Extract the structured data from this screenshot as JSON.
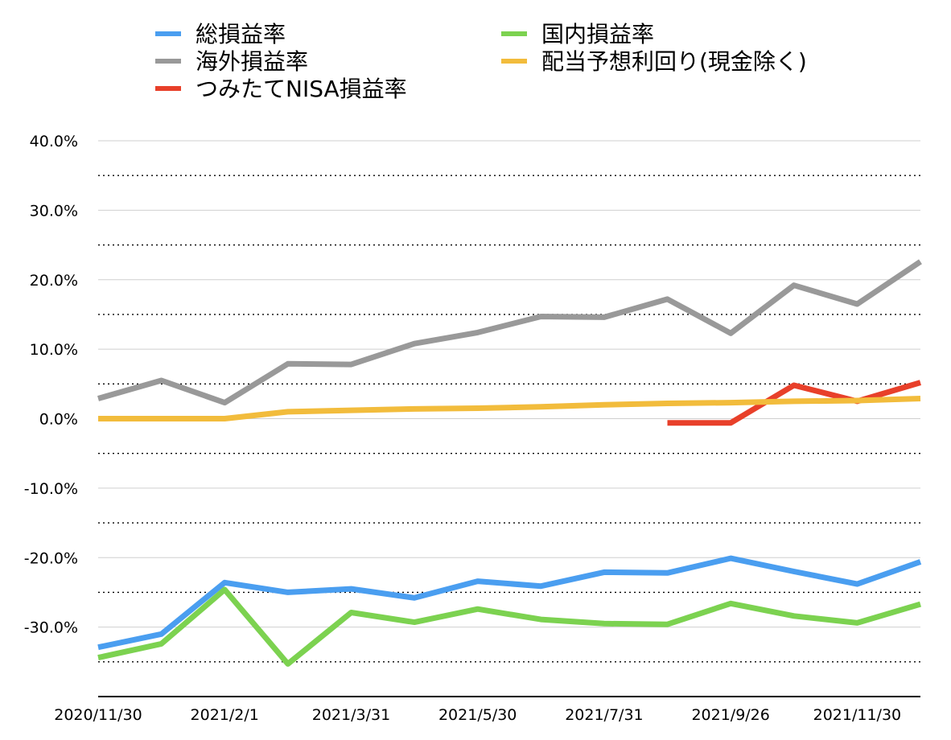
{
  "chart_data": {
    "type": "line",
    "title": "",
    "xlabel": "",
    "ylabel": "",
    "ylim": [
      -40,
      40
    ],
    "y_ticks": [
      "40.0%",
      "30.0%",
      "20.0%",
      "10.0%",
      "0.0%",
      "-10.0%",
      "-20.0%",
      "-30.0%"
    ],
    "x_tick_labels": [
      "2020/11/30",
      "2021/2/1",
      "2021/3/31",
      "2021/5/30",
      "2021/7/31",
      "2021/9/26",
      "2021/11/30"
    ],
    "x_points": 14,
    "grid": true,
    "legend_position": "top",
    "series": [
      {
        "name": "総損益率",
        "color": "#4A9EF0",
        "values": [
          -32.9,
          -31.0,
          -23.6,
          -25.0,
          -24.5,
          -25.8,
          -23.4,
          -24.1,
          -22.1,
          -22.2,
          -20.1,
          -22.0,
          -23.8,
          -20.6
        ]
      },
      {
        "name": "国内損益率",
        "color": "#7CD250",
        "values": [
          -34.4,
          -32.4,
          -24.6,
          -35.3,
          -27.9,
          -29.3,
          -27.4,
          -28.9,
          -29.5,
          -29.6,
          -26.6,
          -28.4,
          -29.4,
          -26.7
        ]
      },
      {
        "name": "海外損益率",
        "color": "#999999",
        "values": [
          2.9,
          5.5,
          2.3,
          7.9,
          7.8,
          10.8,
          12.4,
          14.7,
          14.6,
          17.2,
          12.3,
          19.2,
          16.5,
          22.6
        ]
      },
      {
        "name": "配当予想利回り(現金除く)",
        "color": "#F2BC3C",
        "values": [
          0.0,
          0.0,
          0.0,
          1.0,
          1.2,
          1.4,
          1.5,
          1.7,
          2.0,
          2.2,
          2.3,
          2.5,
          2.6,
          2.9
        ]
      },
      {
        "name": "つみたてNISA損益率",
        "color": "#E8402A",
        "values": [
          null,
          null,
          null,
          null,
          null,
          null,
          null,
          null,
          null,
          -0.6,
          -0.6,
          4.8,
          2.5,
          5.2
        ]
      }
    ]
  }
}
